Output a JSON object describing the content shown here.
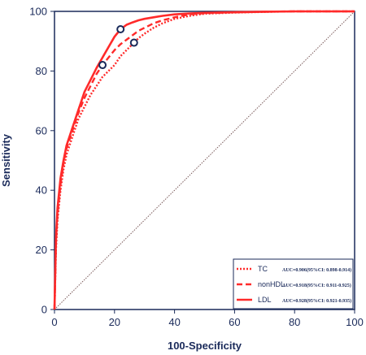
{
  "chart_data": {
    "type": "line",
    "title": "",
    "xlabel": "100-Specificity",
    "ylabel": "Sensitivity",
    "xlim": [
      0,
      100
    ],
    "ylim": [
      0,
      100
    ],
    "x_ticks": [
      "0",
      "20",
      "40",
      "60",
      "80",
      "100"
    ],
    "y_ticks": [
      "0",
      "20",
      "40",
      "60",
      "80",
      "100"
    ],
    "legend_position": "bottom-right",
    "series": [
      {
        "name": "TC",
        "auc_text": "AUC=0.906(95%CI: 0.898-0.914)",
        "color": "#ff2a2a",
        "style": "dotted",
        "x": [
          0,
          0.5,
          1,
          2,
          3,
          4,
          6,
          8,
          10,
          12,
          14,
          16,
          18,
          20,
          22,
          24,
          26,
          28,
          30,
          33,
          36,
          40,
          45,
          50,
          60,
          70,
          80,
          90,
          100
        ],
        "y": [
          0,
          20,
          30,
          40,
          47,
          52,
          58,
          64,
          68,
          72,
          75,
          78,
          80,
          82,
          85,
          87,
          89,
          91,
          92.5,
          94.5,
          96,
          97.5,
          98.5,
          99.2,
          99.6,
          99.8,
          100,
          100,
          100
        ]
      },
      {
        "name": "nonHDL",
        "auc_text": "AUC=0.918(95%CI: 0.911-0.925)",
        "color": "#ff2a2a",
        "style": "dashed",
        "x": [
          0,
          0.5,
          1,
          2,
          3,
          4,
          6,
          8,
          10,
          12,
          14,
          16,
          18,
          20,
          22,
          24,
          26,
          28,
          30,
          33,
          36,
          40,
          45,
          50,
          60,
          70,
          80,
          90,
          100
        ],
        "y": [
          0,
          22,
          32,
          42,
          49,
          54,
          60,
          66,
          71,
          75,
          79,
          82,
          84.5,
          87,
          89,
          90.5,
          92,
          93.5,
          94.5,
          96,
          97,
          98,
          99,
          99.4,
          99.7,
          99.9,
          100,
          100,
          100
        ]
      },
      {
        "name": "LDL",
        "auc_text": "AUC=0.928(95%CI: 0.921-0.935)",
        "color": "#ff2a2a",
        "style": "solid",
        "x": [
          0,
          0.5,
          1,
          2,
          3,
          4,
          6,
          8,
          10,
          12,
          14,
          16,
          18,
          20,
          22,
          24,
          26,
          28,
          30,
          33,
          36,
          40,
          45,
          50,
          60,
          70,
          80,
          90,
          100
        ],
        "y": [
          0,
          24,
          34,
          44,
          50,
          55,
          61,
          67,
          73,
          77,
          81,
          84.5,
          88,
          91.5,
          94,
          95.5,
          96.3,
          97,
          97.5,
          98,
          98.5,
          99,
          99.3,
          99.5,
          99.7,
          99.9,
          100,
          100,
          100
        ]
      }
    ],
    "reference_line": {
      "x": [
        0,
        100
      ],
      "y": [
        0,
        100
      ],
      "color": "#7a5a5a",
      "style": "dotted"
    },
    "markers": [
      {
        "x": 16,
        "y": 82
      },
      {
        "x": 22,
        "y": 94
      },
      {
        "x": 26.5,
        "y": 89.5
      }
    ],
    "marker_color": "#1a2a5a"
  }
}
